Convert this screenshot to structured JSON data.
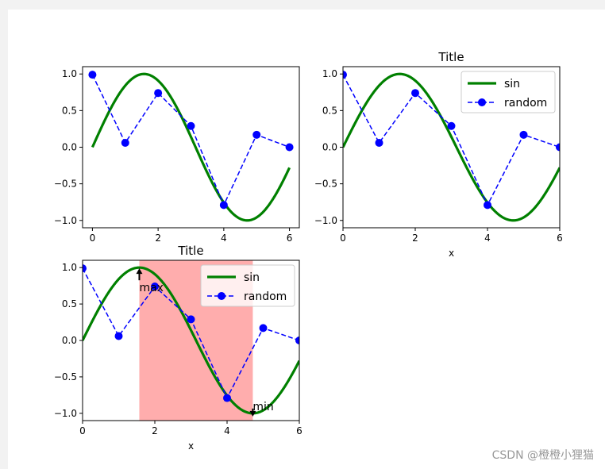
{
  "watermark": "CSDN @橙橙小狸猫",
  "colors": {
    "sin": "#008000",
    "random": "#0000ff",
    "span": "#ff9999"
  },
  "chart_data": [
    {
      "type": "line",
      "title": "",
      "xlabel": "",
      "ylabel": "",
      "xlim": [
        -0.3,
        6.3
      ],
      "ylim": [
        -1.1,
        1.1
      ],
      "xticks": [
        "0",
        "2",
        "4",
        "6"
      ],
      "yticks": [
        "1.0",
        "0.5",
        "0.0",
        "−0.5",
        "−1.0"
      ],
      "legend": null,
      "series": [
        {
          "kind": "sin",
          "x_range": [
            0,
            6
          ],
          "line": "solid"
        },
        {
          "kind": "random",
          "x": [
            0,
            1,
            2,
            3,
            4,
            5,
            6
          ],
          "y": [
            0.99,
            0.06,
            0.74,
            0.29,
            -0.79,
            0.17,
            0.0
          ]
        }
      ]
    },
    {
      "type": "line",
      "title": "Title",
      "xlabel": "x",
      "ylabel": "",
      "xlim": [
        0,
        6
      ],
      "ylim": [
        -1.1,
        1.1
      ],
      "xticks": [
        "0",
        "2",
        "4",
        "6"
      ],
      "yticks": [
        "1.0",
        "0.5",
        "0.0",
        "−0.5",
        "−1.0"
      ],
      "legend": "upper right",
      "series": [
        {
          "name": "sin",
          "kind": "sin",
          "x_range": [
            0,
            6
          ]
        },
        {
          "name": "random",
          "kind": "random",
          "x": [
            0,
            1,
            2,
            3,
            4,
            5,
            6
          ],
          "y": [
            0.99,
            0.06,
            0.74,
            0.29,
            -0.79,
            0.17,
            0.0
          ]
        }
      ]
    },
    {
      "type": "line",
      "title": "Title",
      "xlabel": "x",
      "ylabel": "",
      "xlim": [
        0,
        6
      ],
      "ylim": [
        -1.1,
        1.1
      ],
      "xticks": [
        "0",
        "2",
        "4",
        "6"
      ],
      "yticks": [
        "1.0",
        "0.5",
        "0.0",
        "−0.5",
        "−1.0"
      ],
      "legend": "upper right",
      "span": [
        1.5708,
        4.7124
      ],
      "annotations": [
        {
          "text": "max",
          "x": 1.5708,
          "y": 1.0,
          "dir": "up"
        },
        {
          "text": "min",
          "x": 4.7124,
          "y": -1.0,
          "dir": "down"
        }
      ],
      "series": [
        {
          "name": "sin",
          "kind": "sin",
          "x_range": [
            0,
            6
          ]
        },
        {
          "name": "random",
          "kind": "random",
          "x": [
            0,
            1,
            2,
            3,
            4,
            5,
            6
          ],
          "y": [
            0.99,
            0.06,
            0.74,
            0.29,
            -0.79,
            0.17,
            0.0
          ]
        }
      ]
    }
  ]
}
